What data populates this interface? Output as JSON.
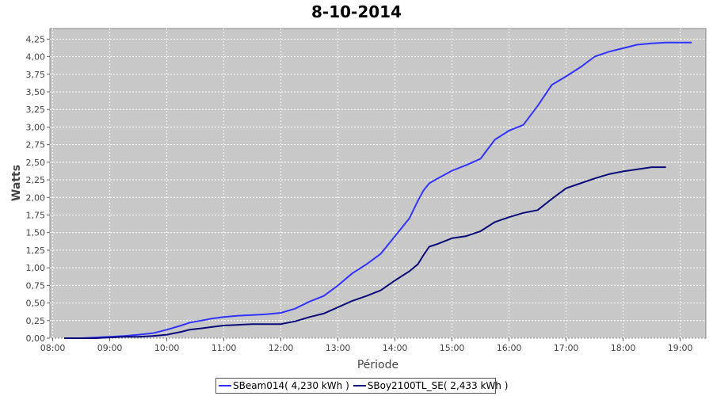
{
  "chart_data": {
    "type": "line",
    "title": "8-10-2014",
    "xlabel": "Période",
    "ylabel": "Watts",
    "xlim": [
      7.95,
      19.45
    ],
    "ylim": [
      0,
      4.4
    ],
    "grid": true,
    "legend_position": "bottom-center",
    "x_tick_values": [
      8,
      9,
      10,
      11,
      12,
      13,
      14,
      15,
      16,
      17,
      18,
      19
    ],
    "x_tick_labels": [
      "08:00",
      "09:00",
      "10:00",
      "11:00",
      "12:00",
      "13:00",
      "14:00",
      "15:00",
      "16:00",
      "17:00",
      "18:00",
      "19:00"
    ],
    "y_tick_values": [
      0,
      0.25,
      0.5,
      0.75,
      1,
      1.25,
      1.5,
      1.75,
      2,
      2.25,
      2.5,
      2.75,
      3,
      3.25,
      3.5,
      3.75,
      4,
      4.25
    ],
    "y_tick_labels": [
      "0,00",
      "0,25",
      "0,50",
      "0,75",
      "1,00",
      "1,25",
      "1,50",
      "1,75",
      "2,00",
      "2,25",
      "2,50",
      "2,75",
      "3,00",
      "3,25",
      "3,50",
      "3,75",
      "4,00",
      "4,25"
    ],
    "series": [
      {
        "name": "SBeam014( 4,230 kWh )",
        "color": "#3333ff",
        "x": [
          8.2,
          8.5,
          8.75,
          9,
          9.25,
          9.5,
          9.75,
          10,
          10.25,
          10.4,
          10.6,
          10.8,
          11,
          11.25,
          11.5,
          11.75,
          12,
          12.25,
          12.5,
          12.75,
          13,
          13.25,
          13.5,
          13.75,
          14,
          14.25,
          14.4,
          14.5,
          14.6,
          14.75,
          15,
          15.25,
          15.5,
          15.75,
          16,
          16.25,
          16.5,
          16.75,
          17,
          17.25,
          17.5,
          17.75,
          18,
          18.25,
          18.5,
          18.75,
          19,
          19.2
        ],
        "y": [
          0,
          0,
          0.01,
          0.02,
          0.03,
          0.05,
          0.07,
          0.12,
          0.18,
          0.22,
          0.25,
          0.28,
          0.3,
          0.32,
          0.33,
          0.34,
          0.36,
          0.42,
          0.52,
          0.6,
          0.75,
          0.92,
          1.05,
          1.2,
          1.45,
          1.7,
          1.95,
          2.1,
          2.2,
          2.27,
          2.38,
          2.46,
          2.55,
          2.82,
          2.95,
          3.03,
          3.3,
          3.6,
          3.72,
          3.85,
          4.0,
          4.07,
          4.12,
          4.17,
          4.19,
          4.2,
          4.2,
          4.2
        ]
      },
      {
        "name": "SBoy2100TL_SE( 2,433 kWh )",
        "color": "#0a0a7a",
        "x": [
          8.2,
          8.5,
          8.75,
          9,
          9.25,
          9.5,
          9.75,
          10,
          10.25,
          10.4,
          10.6,
          10.8,
          11,
          11.25,
          11.5,
          11.75,
          12,
          12.25,
          12.5,
          12.75,
          13,
          13.25,
          13.5,
          13.75,
          14,
          14.25,
          14.4,
          14.5,
          14.6,
          14.75,
          15,
          15.25,
          15.5,
          15.75,
          16,
          16.25,
          16.5,
          16.75,
          17,
          17.25,
          17.5,
          17.75,
          18,
          18.25,
          18.5,
          18.75
        ],
        "y": [
          0,
          0,
          0,
          0.01,
          0.02,
          0.02,
          0.03,
          0.05,
          0.09,
          0.12,
          0.14,
          0.16,
          0.18,
          0.19,
          0.2,
          0.2,
          0.2,
          0.24,
          0.3,
          0.35,
          0.44,
          0.53,
          0.6,
          0.68,
          0.82,
          0.95,
          1.05,
          1.18,
          1.3,
          1.34,
          1.42,
          1.45,
          1.52,
          1.65,
          1.72,
          1.78,
          1.82,
          1.98,
          2.13,
          2.2,
          2.27,
          2.33,
          2.37,
          2.4,
          2.43,
          2.43
        ]
      }
    ]
  }
}
